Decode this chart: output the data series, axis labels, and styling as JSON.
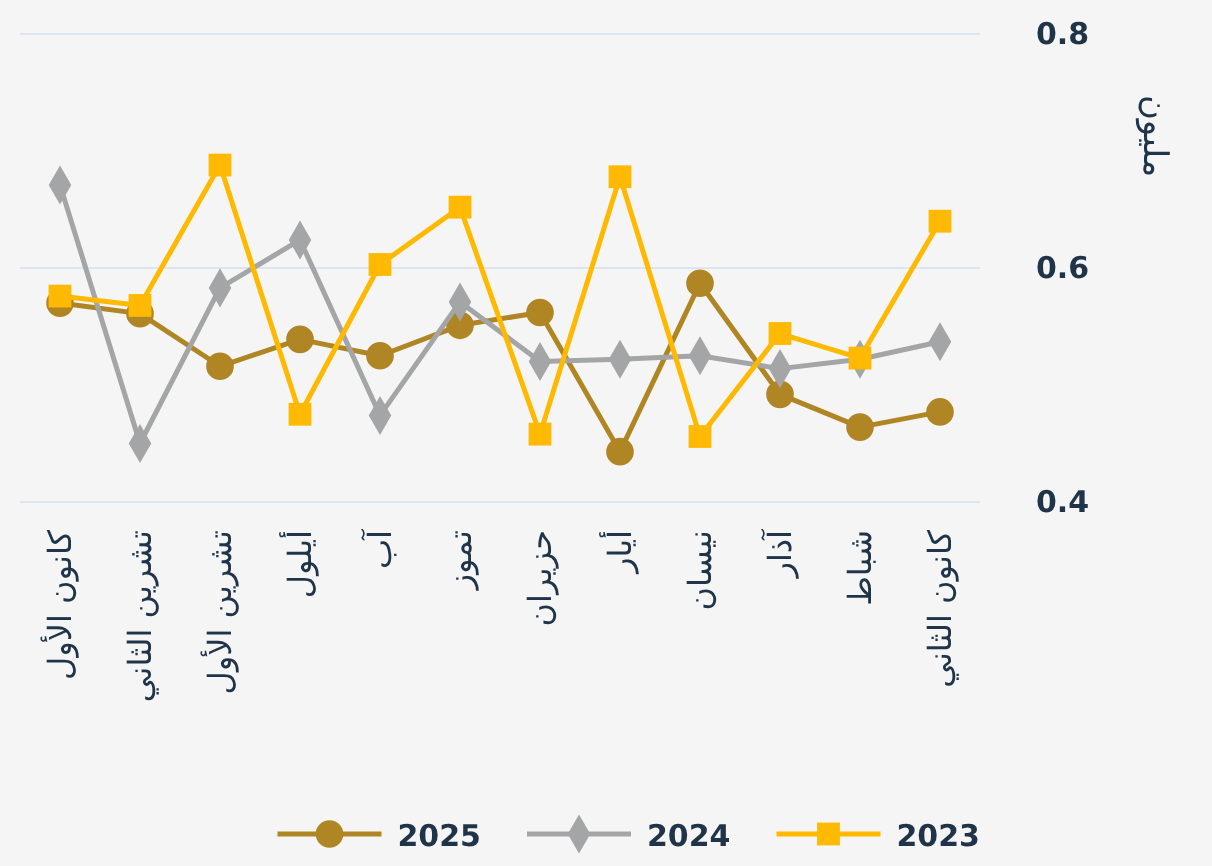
{
  "chart_data": {
    "type": "line",
    "ylabel": "مليون",
    "categories": [
      "كانون الأول",
      "تشرين الثاني",
      "تشرين الأول",
      "أيلول",
      "آب",
      "تموز",
      "حزيران",
      "أيار",
      "نيسان",
      "آذار",
      "شباط",
      "كانون الثاني"
    ],
    "series": [
      {
        "name": "2023",
        "color": "#ffb900",
        "marker": "square",
        "values": [
          0.576,
          0.568,
          0.688,
          0.475,
          0.603,
          0.652,
          0.458,
          0.678,
          0.456,
          0.544,
          0.523,
          0.64
        ]
      },
      {
        "name": "2024",
        "color": "#a3a5a6",
        "marker": "diamond",
        "values": [
          0.671,
          0.45,
          0.583,
          0.624,
          0.474,
          0.571,
          0.52,
          0.522,
          0.525,
          0.514,
          0.522,
          0.537
        ]
      },
      {
        "name": "2025",
        "color": "#b08523",
        "marker": "circle",
        "values": [
          0.57,
          0.561,
          0.516,
          0.539,
          0.525,
          0.551,
          0.562,
          0.443,
          0.587,
          0.492,
          0.464,
          0.477
        ]
      }
    ],
    "ylim": [
      0.4,
      0.8
    ],
    "yticks": [
      0.4,
      0.6,
      0.8
    ],
    "grid": "y",
    "legend": "bottom",
    "line_style": "solid"
  }
}
